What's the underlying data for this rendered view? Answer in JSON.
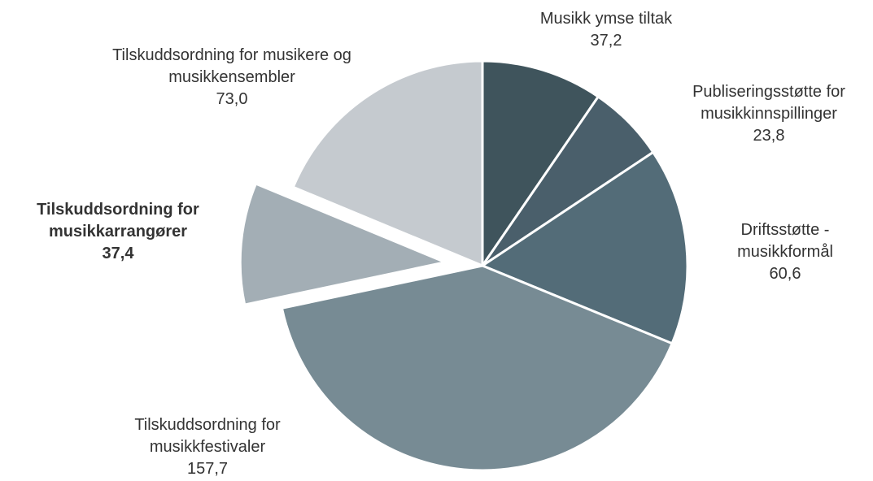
{
  "chart_data": {
    "type": "pie",
    "categories": [
      "Musikk ymse tiltak",
      "Publiseringsstøtte for musikkinnspillinger",
      "Driftsstøtte - musikkformål",
      "Tilskuddsordning for musikkfestivaler",
      "Tilskuddsordning for musikkarrangører",
      "Tilskuddsordning for musikere og musikkensembler"
    ],
    "values": [
      37.2,
      23.8,
      60.6,
      157.7,
      37.4,
      73.0
    ],
    "value_labels": [
      "37,2",
      "23,8",
      "60,6",
      "157,7",
      "37,4",
      "73,0"
    ],
    "colors": [
      "#3f545c",
      "#4a5f6b",
      "#536c78",
      "#778b94",
      "#a3aeb5",
      "#c5cacf"
    ],
    "exploded": 4
  }
}
